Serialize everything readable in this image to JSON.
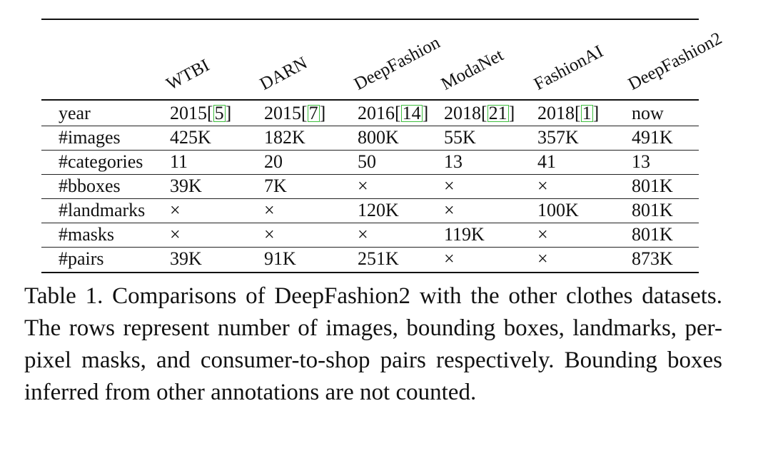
{
  "table": {
    "columns": [
      "WTBI",
      "DARN",
      "DeepFashion",
      "ModaNet",
      "FashionAI",
      "DeepFashion2"
    ],
    "rows": [
      {
        "label": "year",
        "cells": [
          {
            "text": "2015",
            "cite": "5"
          },
          {
            "text": "2015",
            "cite": "7"
          },
          {
            "text": "2016",
            "cite": "14"
          },
          {
            "text": "2018",
            "cite": "21"
          },
          {
            "text": "2018",
            "cite": "1"
          },
          {
            "text": "now"
          }
        ]
      },
      {
        "label": "#images",
        "cells": [
          {
            "text": "425K"
          },
          {
            "text": "182K"
          },
          {
            "text": "800K"
          },
          {
            "text": "55K"
          },
          {
            "text": "357K"
          },
          {
            "text": "491K"
          }
        ]
      },
      {
        "label": "#categories",
        "cells": [
          {
            "text": "11"
          },
          {
            "text": "20"
          },
          {
            "text": "50"
          },
          {
            "text": "13"
          },
          {
            "text": "41"
          },
          {
            "text": "13"
          }
        ]
      },
      {
        "label": "#bboxes",
        "cells": [
          {
            "text": "39K"
          },
          {
            "text": "7K"
          },
          {
            "text": "×"
          },
          {
            "text": "×"
          },
          {
            "text": "×"
          },
          {
            "text": "801K"
          }
        ]
      },
      {
        "label": "#landmarks",
        "cells": [
          {
            "text": "×"
          },
          {
            "text": "×"
          },
          {
            "text": "120K"
          },
          {
            "text": "×"
          },
          {
            "text": "100K"
          },
          {
            "text": "801K"
          }
        ]
      },
      {
        "label": "#masks",
        "cells": [
          {
            "text": "×"
          },
          {
            "text": "×"
          },
          {
            "text": "×"
          },
          {
            "text": "119K"
          },
          {
            "text": "×"
          },
          {
            "text": "801K"
          }
        ]
      },
      {
        "label": "#pairs",
        "cells": [
          {
            "text": "39K"
          },
          {
            "text": "91K"
          },
          {
            "text": "251K"
          },
          {
            "text": "×"
          },
          {
            "text": "×"
          },
          {
            "text": "873K"
          }
        ]
      }
    ]
  },
  "caption": "Table 1. Comparisons of DeepFashion2 with the other clothes datasets. The rows represent number of images, bounding boxes, landmarks, per-pixel masks, and consumer-to-shop pairs respectively. Bounding boxes inferred from other annotations are not counted."
}
